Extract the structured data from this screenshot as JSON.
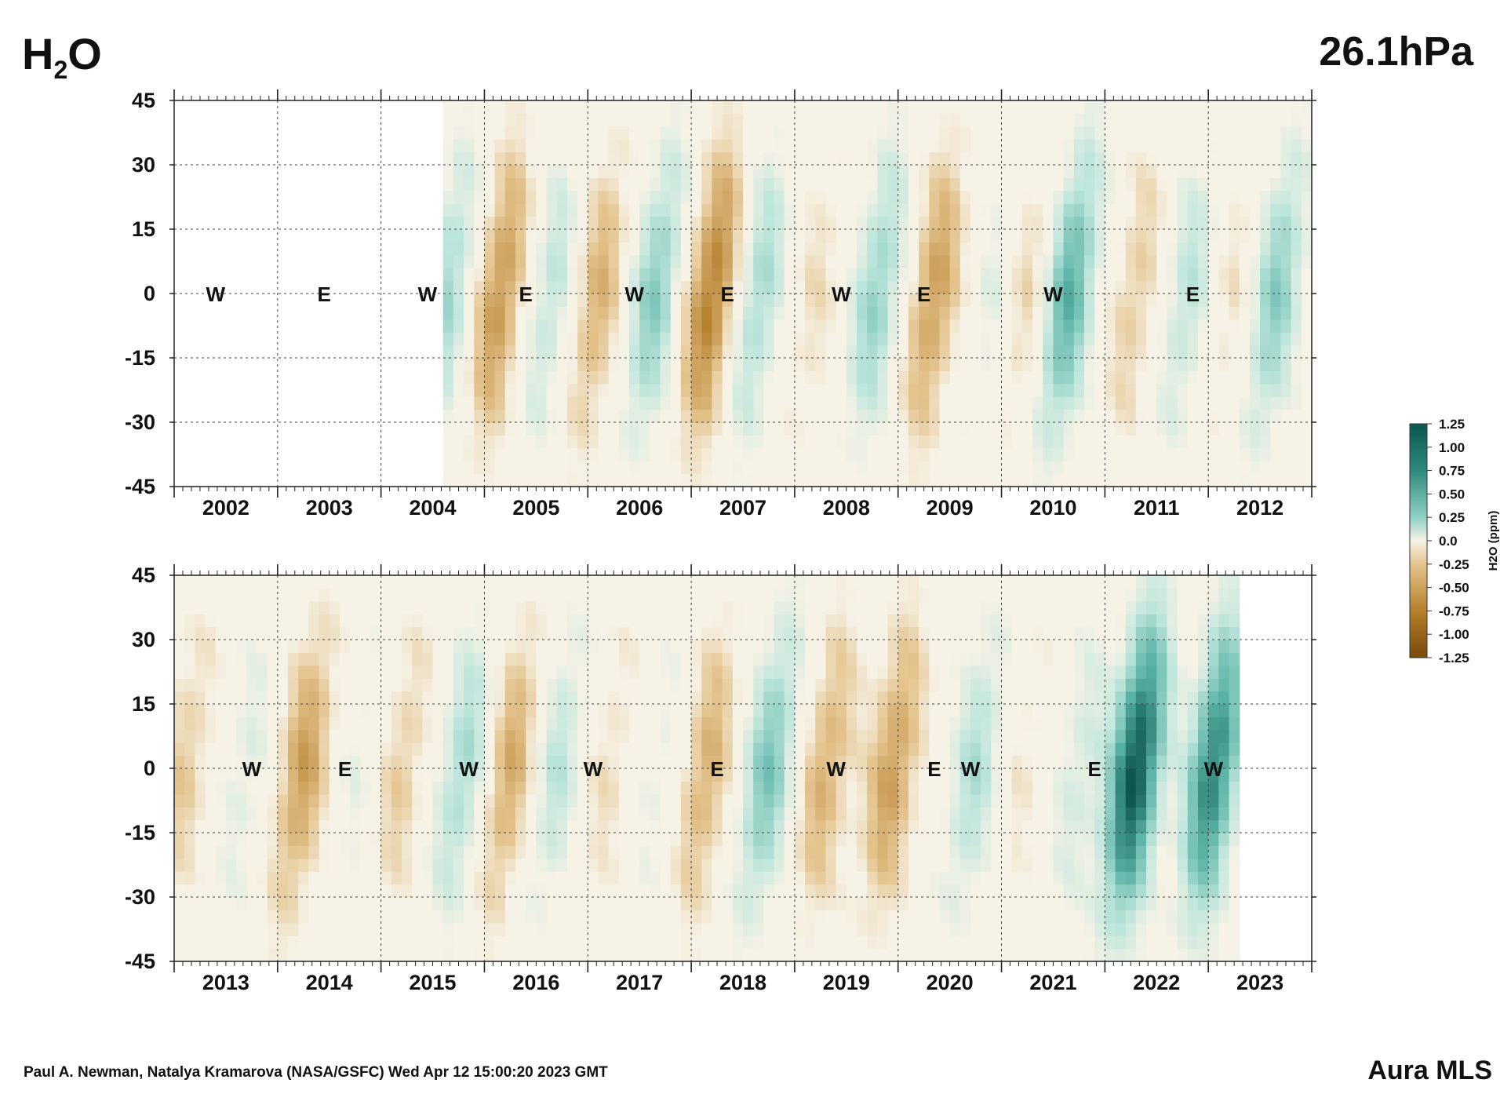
{
  "header": {
    "species_base": "H",
    "species_sub": "2",
    "species_tail": "O",
    "level": "26.1hPa"
  },
  "footer": {
    "credit": "Paul A. Newman, Natalya Kramarova (NASA/GSFC) Wed Apr 12 15:00:20 2023 GMT",
    "instrument": "Aura MLS"
  },
  "colors": {
    "dry_max": "#7a4a0c",
    "dry": "#b57f2c",
    "dry_light": "#e4c48e",
    "neutral": "#f6f2e6",
    "wet_light": "#bfe6dc",
    "wet": "#5ab4a6",
    "wet_max": "#0c574d"
  },
  "colorbar": {
    "label": "H2O (ppm)",
    "ticks": [
      "1.25",
      "1.00",
      "0.75",
      "0.50",
      "0.25",
      "0.0",
      "-0.25",
      "-0.50",
      "-0.75",
      "-1.00",
      "-1.25"
    ]
  },
  "chart_data": [
    {
      "type": "heatmap",
      "title": "",
      "xlabel": "",
      "ylabel": "",
      "x_ticks": [
        "2002",
        "2003",
        "2004",
        "2005",
        "2006",
        "2007",
        "2008",
        "2009",
        "2010",
        "2011",
        "2012"
      ],
      "y_ticks": [
        "45",
        "30",
        "15",
        "0",
        "-15",
        "-30",
        "-45"
      ],
      "xlim": [
        2001.5,
        2012.5
      ],
      "ylim": [
        -45,
        45
      ],
      "data_start": 2004.1,
      "data_end": 2012.5,
      "anomaly_peaks": [
        {
          "x": 2004.15,
          "value": 0.45
        },
        {
          "x": 2004.65,
          "value": -0.6
        },
        {
          "x": 2005.15,
          "value": 0.35
        },
        {
          "x": 2005.6,
          "value": -0.45
        },
        {
          "x": 2006.15,
          "value": 0.55
        },
        {
          "x": 2006.7,
          "value": -0.75
        },
        {
          "x": 2007.15,
          "value": 0.45
        },
        {
          "x": 2007.7,
          "value": -0.2
        },
        {
          "x": 2008.3,
          "value": 0.5
        },
        {
          "x": 2008.85,
          "value": -0.55
        },
        {
          "x": 2009.45,
          "value": 0.2
        },
        {
          "x": 2009.75,
          "value": -0.3
        },
        {
          "x": 2010.15,
          "value": 0.75
        },
        {
          "x": 2010.8,
          "value": -0.3
        },
        {
          "x": 2011.3,
          "value": 0.35
        },
        {
          "x": 2011.75,
          "value": -0.2
        },
        {
          "x": 2012.15,
          "value": 0.55
        }
      ],
      "qbo_labels": [
        {
          "text": "W",
          "x": 2001.9
        },
        {
          "text": "E",
          "x": 2002.95
        },
        {
          "text": "W",
          "x": 2003.95
        },
        {
          "text": "E",
          "x": 2004.9
        },
        {
          "text": "W",
          "x": 2005.95
        },
        {
          "text": "E",
          "x": 2006.85
        },
        {
          "text": "W",
          "x": 2007.95
        },
        {
          "text": "E",
          "x": 2008.75
        },
        {
          "text": "W",
          "x": 2010.0
        },
        {
          "text": "E",
          "x": 2011.35
        }
      ]
    },
    {
      "type": "heatmap",
      "title": "",
      "xlabel": "",
      "ylabel": "",
      "x_ticks": [
        "2013",
        "2014",
        "2015",
        "2016",
        "2017",
        "2018",
        "2019",
        "2020",
        "2021",
        "2022",
        "2023"
      ],
      "y_ticks": [
        "45",
        "30",
        "15",
        "0",
        "-15",
        "-30",
        "-45"
      ],
      "xlim": [
        2012.5,
        2023.5
      ],
      "ylim": [
        -45,
        45
      ],
      "data_start": 2012.5,
      "data_end": 2022.78,
      "anomaly_peaks": [
        {
          "x": 2012.6,
          "value": -0.3
        },
        {
          "x": 2013.2,
          "value": 0.2
        },
        {
          "x": 2013.75,
          "value": -0.55
        },
        {
          "x": 2014.3,
          "value": 0.15
        },
        {
          "x": 2014.7,
          "value": -0.3
        },
        {
          "x": 2015.3,
          "value": 0.45
        },
        {
          "x": 2015.75,
          "value": -0.5
        },
        {
          "x": 2016.2,
          "value": 0.35
        },
        {
          "x": 2016.7,
          "value": -0.2
        },
        {
          "x": 2017.2,
          "value": 0.15
        },
        {
          "x": 2017.65,
          "value": -0.45
        },
        {
          "x": 2018.25,
          "value": 0.6
        },
        {
          "x": 2018.8,
          "value": -0.45
        },
        {
          "x": 2019.45,
          "value": -0.55
        },
        {
          "x": 2020.25,
          "value": 0.4
        },
        {
          "x": 2020.7,
          "value": -0.15
        },
        {
          "x": 2021.25,
          "value": 0.25
        },
        {
          "x": 2021.8,
          "value": 1.25
        },
        {
          "x": 2022.55,
          "value": 1.0
        }
      ],
      "qbo_labels": [
        {
          "text": "W",
          "x": 2013.25
        },
        {
          "text": "E",
          "x": 2014.15
        },
        {
          "text": "W",
          "x": 2015.35
        },
        {
          "text": "W",
          "x": 2016.55
        },
        {
          "text": "E",
          "x": 2017.75
        },
        {
          "text": "W",
          "x": 2018.9
        },
        {
          "text": "E",
          "x": 2019.85
        },
        {
          "text": "W",
          "x": 2020.2
        },
        {
          "text": "E",
          "x": 2021.4
        },
        {
          "text": "W",
          "x": 2022.55
        }
      ]
    }
  ]
}
